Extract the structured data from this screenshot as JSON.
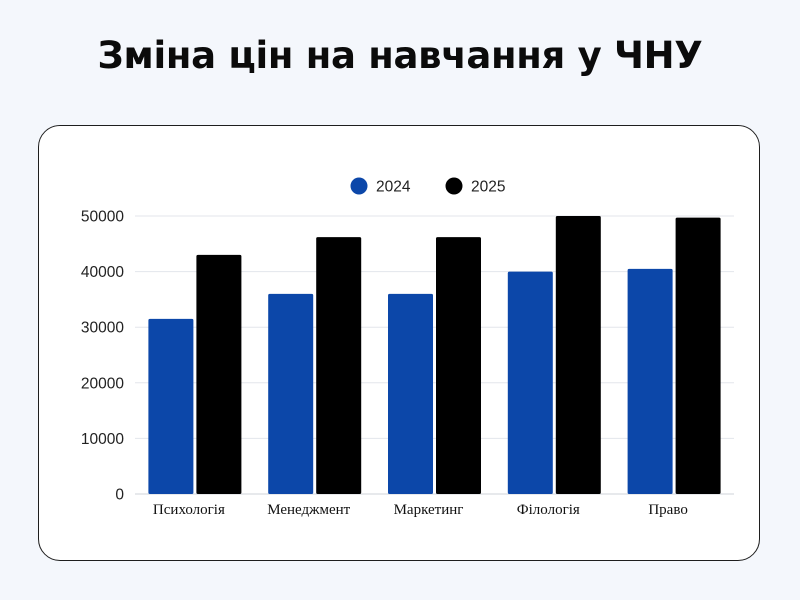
{
  "page": {
    "title": "Зміна цін на навчання у ЧНУ"
  },
  "chart_data": {
    "type": "bar",
    "title": "Зміна цін на навчання у ЧНУ",
    "xlabel": "",
    "ylabel": "",
    "categories": [
      "Психологія",
      "Менеджмент",
      "Маркетинг",
      "Філологія",
      "Право"
    ],
    "series": [
      {
        "name": "2024",
        "color": "#0c47a9",
        "values": [
          31500,
          36000,
          36000,
          40000,
          40500
        ]
      },
      {
        "name": "2025",
        "color": "#000000",
        "values": [
          43000,
          46200,
          46200,
          50000,
          49700
        ]
      }
    ],
    "ylim": [
      0,
      50000
    ],
    "yticks": [
      "0",
      "10000",
      "20000",
      "30000",
      "40000",
      "50000"
    ],
    "grid": true,
    "legend": "top-center"
  }
}
